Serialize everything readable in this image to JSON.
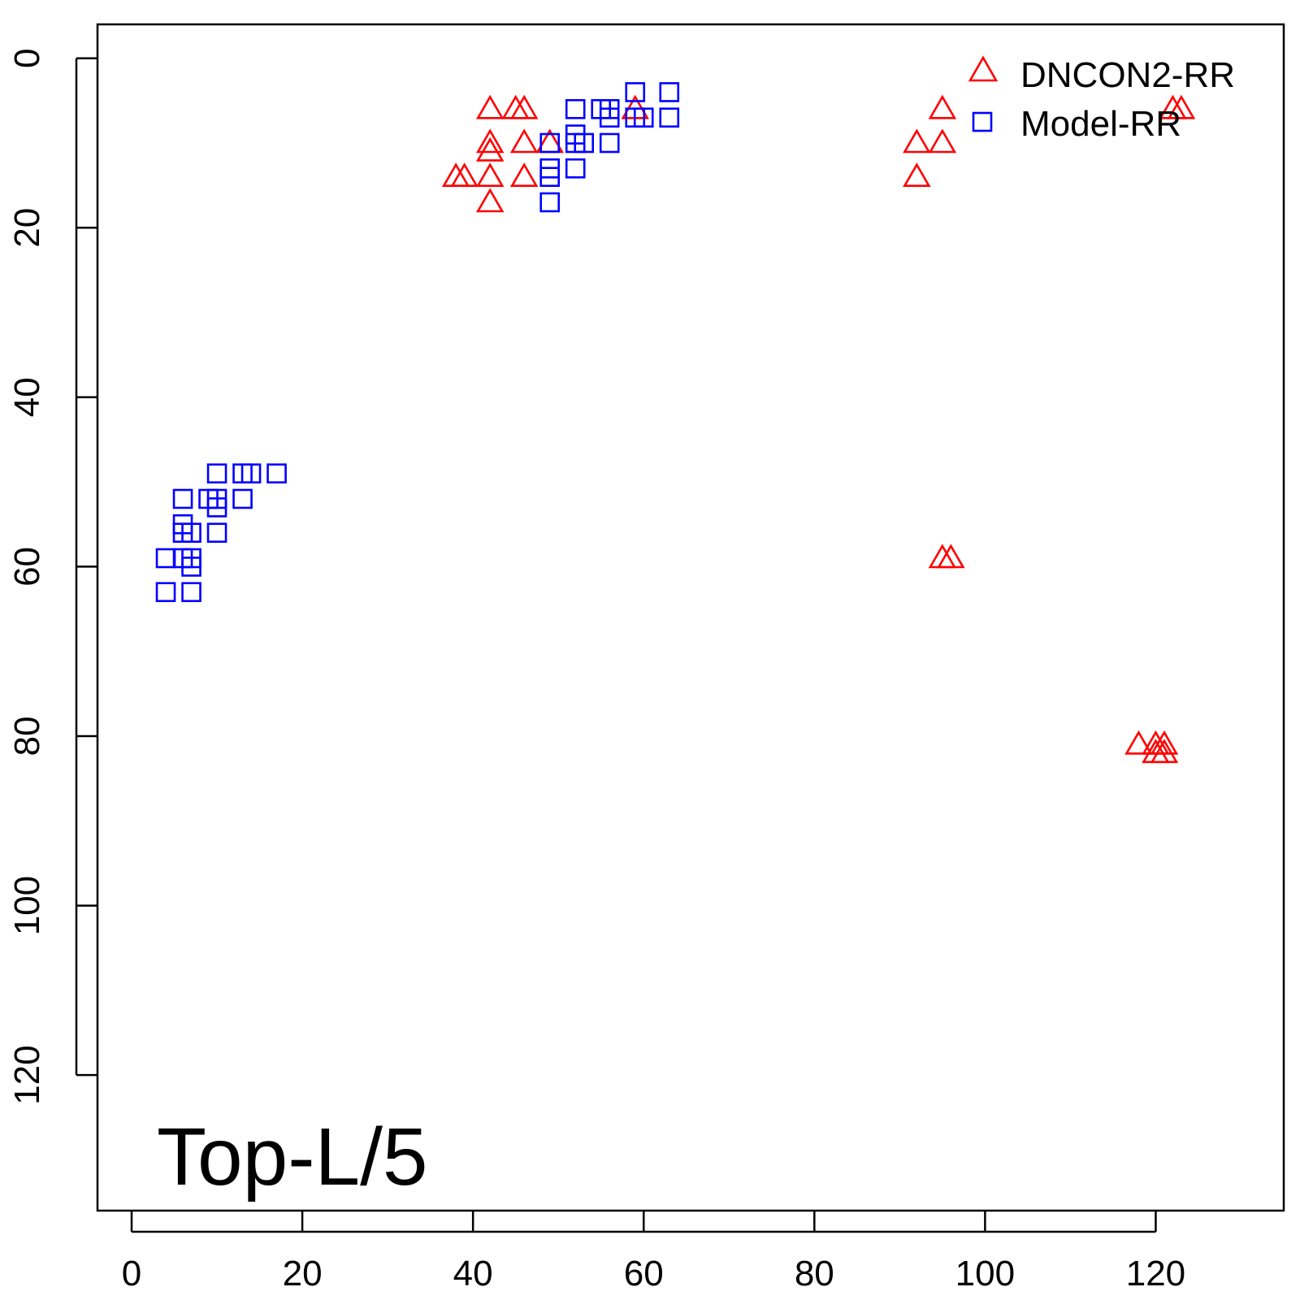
{
  "chart_data": {
    "type": "scatter",
    "title": "Top-L/5",
    "xlabel": "",
    "ylabel": "",
    "xlim": [
      -4,
      135
    ],
    "ylim": [
      136,
      -4
    ],
    "y_reversed": true,
    "grid": false,
    "legend_position": "top-right",
    "x_ticks": [
      0,
      20,
      40,
      60,
      80,
      100,
      120
    ],
    "y_ticks": [
      0,
      20,
      40,
      60,
      80,
      100,
      120
    ],
    "series": [
      {
        "name": "DNCON2-RR",
        "marker": "triangle",
        "color": "#ff0000",
        "points": [
          [
            42,
            6
          ],
          [
            45,
            6
          ],
          [
            46,
            6
          ],
          [
            59,
            6
          ],
          [
            42,
            10
          ],
          [
            46,
            10
          ],
          [
            49,
            10
          ],
          [
            42,
            11
          ],
          [
            38,
            14
          ],
          [
            39,
            14
          ],
          [
            42,
            14
          ],
          [
            46,
            14
          ],
          [
            42,
            17
          ],
          [
            92,
            10
          ],
          [
            95,
            10
          ],
          [
            95,
            6
          ],
          [
            92,
            14
          ],
          [
            122,
            6
          ],
          [
            123,
            6
          ],
          [
            95,
            59
          ],
          [
            96,
            59
          ],
          [
            118,
            81
          ],
          [
            120,
            81
          ],
          [
            121,
            81
          ],
          [
            120,
            82
          ],
          [
            121,
            82
          ]
        ]
      },
      {
        "name": "Model-RR",
        "marker": "square",
        "color": "#0000ff",
        "points": [
          [
            59,
            4
          ],
          [
            63,
            4
          ],
          [
            52,
            6
          ],
          [
            55,
            6
          ],
          [
            56,
            6
          ],
          [
            56,
            7
          ],
          [
            59,
            7
          ],
          [
            60,
            7
          ],
          [
            63,
            7
          ],
          [
            52,
            9
          ],
          [
            49,
            10
          ],
          [
            52,
            10
          ],
          [
            53,
            10
          ],
          [
            56,
            10
          ],
          [
            49,
            13
          ],
          [
            52,
            13
          ],
          [
            49,
            14
          ],
          [
            49,
            17
          ],
          [
            10,
            49
          ],
          [
            13,
            49
          ],
          [
            14,
            49
          ],
          [
            17,
            49
          ],
          [
            6,
            52
          ],
          [
            9,
            52
          ],
          [
            10,
            52
          ],
          [
            13,
            52
          ],
          [
            10,
            53
          ],
          [
            6,
            55
          ],
          [
            6,
            56
          ],
          [
            7,
            56
          ],
          [
            10,
            56
          ],
          [
            4,
            59
          ],
          [
            6,
            59
          ],
          [
            7,
            59
          ],
          [
            7,
            60
          ],
          [
            4,
            63
          ],
          [
            7,
            63
          ]
        ]
      }
    ]
  }
}
